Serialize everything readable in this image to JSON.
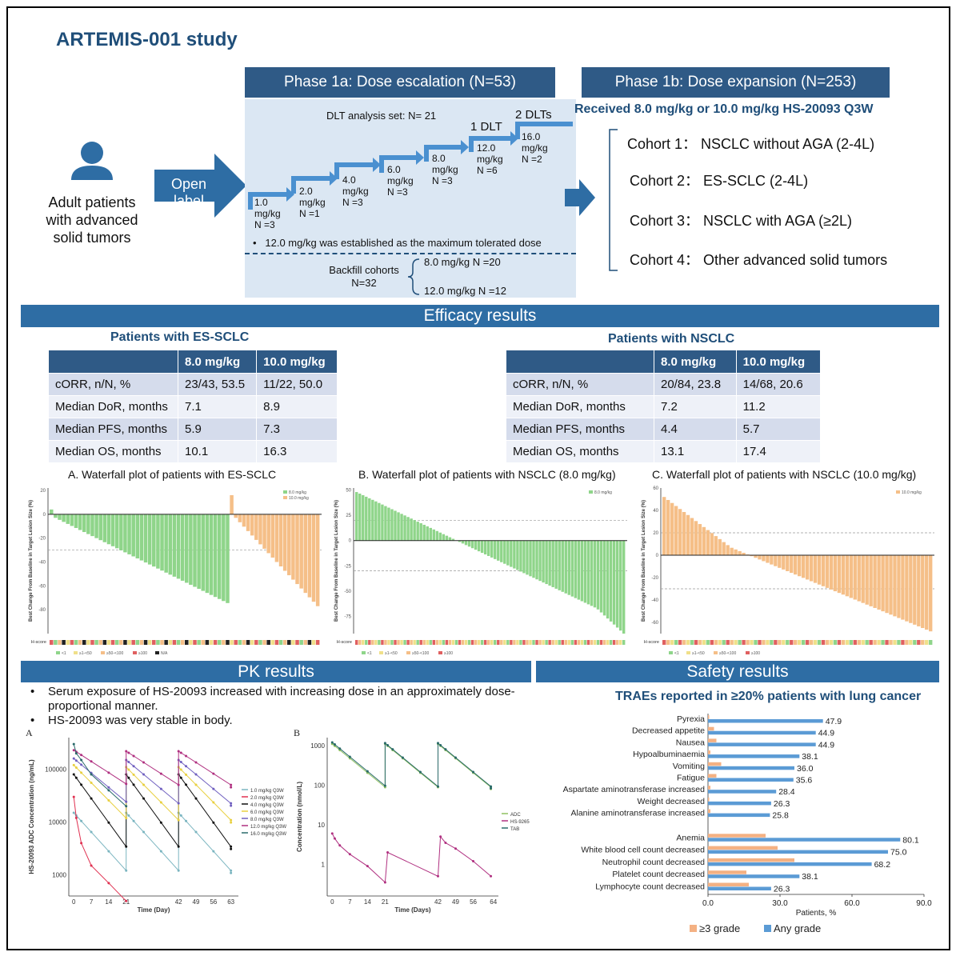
{
  "title": "ARTEMIS-001 study",
  "patients": {
    "line1": "Adult patients",
    "line2": "with advanced",
    "line3": "solid tumors"
  },
  "open_label": "Open label",
  "phase1a": {
    "title": "Phase 1a: Dose escalation (N=53)",
    "dlt_set": "DLT analysis set: N= 21",
    "one_dlt": "1 DLT",
    "two_dlts": "2 DLTs",
    "steps": [
      {
        "dose": "1.0",
        "unit": "mg/kg",
        "n": "N =3"
      },
      {
        "dose": "2.0",
        "unit": "mg/kg",
        "n": "N =1"
      },
      {
        "dose": "4.0",
        "unit": "mg/kg",
        "n": "N =3"
      },
      {
        "dose": "6.0",
        "unit": "mg/kg",
        "n": "N =3"
      },
      {
        "dose": "8.0",
        "unit": "mg/kg",
        "n": "N =3"
      },
      {
        "dose": "12.0",
        "unit": "mg/kg",
        "n": "N =6"
      },
      {
        "dose": "16.0",
        "unit": "mg/kg",
        "n": "N =2"
      }
    ],
    "mtd_note": "12.0 mg/kg was established as the maximum tolerated dose",
    "backfill_label": "Backfill cohorts",
    "backfill_n": "N=32",
    "backfill_8": "8.0 mg/kg N =20",
    "backfill_12": "12.0 mg/kg N =12"
  },
  "phase1b": {
    "title": "Phase 1b: Dose expansion (N=253)",
    "received": "Received 8.0 mg/kg or 10.0 mg/kg HS-20093 Q3W",
    "cohorts": [
      "Cohort 1： NSCLC without AGA (2-4L)",
      "Cohort 2： ES-SCLC (2-4L)",
      "Cohort 3： NSCLC with AGA (≥2L)",
      "Cohort 4： Other advanced solid tumors"
    ]
  },
  "efficacy": {
    "header": "Efficacy results",
    "sclc": {
      "title": "Patients with ES-SCLC",
      "cols": [
        "8.0 mg/kg",
        "10.0 mg/kg"
      ],
      "rows": [
        {
          "label": "cORR, n/N, %",
          "a": "23/43, 53.5",
          "b": "11/22, 50.0"
        },
        {
          "label": "Median DoR, months",
          "a": "7.1",
          "b": "8.9"
        },
        {
          "label": "Median PFS, months",
          "a": "5.9",
          "b": "7.3"
        },
        {
          "label": "Median OS, months",
          "a": "10.1",
          "b": "16.3"
        }
      ]
    },
    "nsclc": {
      "title": "Patients with NSCLC",
      "cols": [
        "8.0 mg/kg",
        "10.0 mg/kg"
      ],
      "rows": [
        {
          "label": "cORR, n/N, %",
          "a": "20/84, 23.8",
          "b": "14/68, 20.6"
        },
        {
          "label": "Median DoR, months",
          "a": "7.2",
          "b": "11.2"
        },
        {
          "label": "Median PFS, months",
          "a": "4.4",
          "b": "5.7"
        },
        {
          "label": "Median OS, months",
          "a": "13.1",
          "b": "17.4"
        }
      ]
    },
    "waterfall_a": {
      "title": "A. Waterfall plot of patients with ES-SCLC",
      "legend": [
        "8.0 mg/kg",
        "10.0 mg/kg"
      ],
      "ylabel": "Best Change From Baseline in Target Lesion Size (%)",
      "yticks": [
        "20",
        "0",
        "-20",
        "-40",
        "-60",
        "-80"
      ],
      "hscore": "H-score",
      "hlegend": [
        "<1",
        "≥1-<50",
        "≥50-<100",
        "≥100",
        "N/A"
      ]
    },
    "waterfall_b": {
      "title": "B. Waterfall plot of patients with NSCLC (8.0 mg/kg)",
      "legend": [
        "8.0 mg/kg"
      ],
      "ylabel": "Best Change From Baseline in Target Lesion Size (%)",
      "yticks": [
        "50",
        "25",
        "0",
        "-25",
        "-50",
        "-75"
      ],
      "hscore": "H-score",
      "hlegend": [
        "<1",
        "≥1-<50",
        "≥50-<100",
        "≥100"
      ]
    },
    "waterfall_c": {
      "title": "C. Waterfall plot of patients with NSCLC (10.0 mg/kg)",
      "legend": [
        "10.0 mg/kg"
      ],
      "ylabel": "Best Change From Baseline in Target Lesion Size (%)",
      "yticks": [
        "60",
        "40",
        "20",
        "0",
        "-20",
        "-40",
        "-60"
      ],
      "hscore": "H-score",
      "hlegend": [
        "<1",
        "≥1-<50",
        "≥50-<100",
        "≥100"
      ]
    }
  },
  "pk": {
    "header": "PK results",
    "bullet1": "Serum exposure of HS-20093 increased with increasing dose in an approximately dose-",
    "bullet1b": "proportional manner.",
    "bullet2": "HS-20093 was very stable in body.",
    "plot_a": {
      "label": "A",
      "ylabel": "HS-20093 ADC Concentration (ng/mL)",
      "xlabel": "Time (Day)",
      "yticks": [
        "100000",
        "10000",
        "1000"
      ],
      "xticks": [
        "0",
        "7",
        "14",
        "21",
        "42",
        "49",
        "56",
        "63"
      ],
      "legend": [
        "1.0 mg/kg Q3W",
        "2.0 mg/kg Q3W",
        "4.0 mg/kg Q3W",
        "6.0 mg/kg Q3W",
        "8.0 mg/kg Q3W",
        "12.0 mg/kg Q3W",
        "16.0 mg/kg Q3W"
      ]
    },
    "plot_b": {
      "label": "B",
      "ylabel": "Concentration (nmol/L)",
      "xlabel": "Time (Days)",
      "yticks": [
        "1000",
        "100",
        "10",
        "1"
      ],
      "xticks": [
        "0",
        "7",
        "14",
        "21",
        "42",
        "49",
        "56",
        "64"
      ],
      "legend": [
        "ADC",
        "HS-9265",
        "TAB"
      ]
    }
  },
  "safety": {
    "header": "Safety results",
    "chart_title": "TRAEs reported in ≥20% patients with lung cancer",
    "xlabel": "Patients, %",
    "legend_ge3": "≥3 grade",
    "legend_any": "Any grade"
  },
  "chart_data": {
    "type": "bar",
    "title": "TRAEs reported in ≥20% patients with lung cancer",
    "xlabel": "Patients, %",
    "xlim": [
      0,
      90
    ],
    "xticks": [
      "0.0",
      "30.0",
      "60.0",
      "90.0"
    ],
    "categories": [
      "Pyrexia",
      "Decreased appetite",
      "Nausea",
      "Hypoalbuminaemia",
      "Vomiting",
      "Fatigue",
      "Aspartate aminotransferase increased",
      "Weight decreased",
      "Alanine aminotransferase increased",
      "Anemia",
      "White blood cell count decreased",
      "Neutrophil count decreased",
      "Platelet count decreased",
      "Lymphocyte count decreased"
    ],
    "series": [
      {
        "name": "Any grade",
        "values": [
          47.9,
          44.9,
          44.9,
          38.1,
          36.0,
          35.6,
          28.4,
          26.3,
          25.8,
          80.1,
          75.0,
          68.2,
          38.1,
          26.3
        ]
      },
      {
        "name": "≥3 grade",
        "values": [
          0.5,
          2.5,
          3.5,
          1.0,
          5.5,
          3.5,
          1.0,
          0.5,
          1.0,
          24.0,
          29.0,
          36.0,
          16.0,
          17.0
        ]
      }
    ],
    "value_labels": [
      "47.9",
      "44.9",
      "44.9",
      "38.1",
      "36.0",
      "35.6",
      "28.4",
      "26.3",
      "25.8",
      "80.1",
      "75.0",
      "68.2",
      "38.1",
      "26.3"
    ]
  },
  "colors": {
    "navy": "#2f5a86",
    "blue": "#2e6da4",
    "panel": "#dbe7f3",
    "title": "#1f4e79",
    "green": "#8fd58a",
    "orange": "#f5bf88",
    "any_grade": "#5b9bd5",
    "ge3_grade": "#f4b183"
  }
}
